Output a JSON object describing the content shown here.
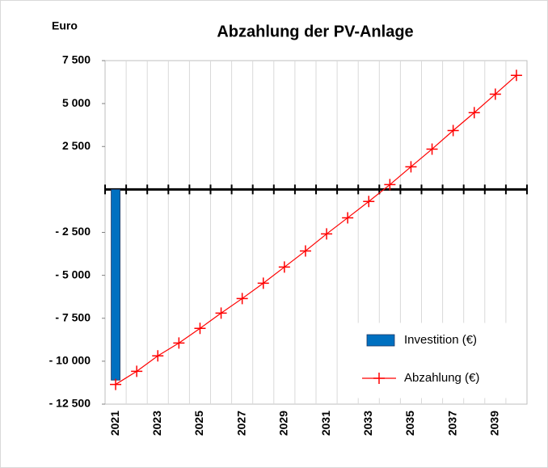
{
  "chart_data": {
    "type": "combo",
    "title": "Abzahlung der PV-Anlage",
    "y_label": "Euro",
    "categories": [
      "2021",
      null,
      "2023",
      null,
      "2025",
      null,
      "2027",
      null,
      "2029",
      null,
      "2031",
      null,
      "2033",
      null,
      "2035",
      null,
      "2037",
      null,
      "2039",
      null
    ],
    "series": [
      {
        "name": "Investition (€)",
        "type": "bar",
        "color": "#0070c0",
        "values": [
          -11100,
          null,
          null,
          null,
          null,
          null,
          null,
          null,
          null,
          null,
          null,
          null,
          null,
          null,
          null,
          null,
          null,
          null,
          null,
          null
        ]
      },
      {
        "name": "Abzahlung (€)",
        "type": "line",
        "color": "#ff0000",
        "values": [
          -11350,
          -10590,
          -9690,
          -8940,
          -8090,
          -7200,
          -6350,
          -5460,
          -4520,
          -3580,
          -2590,
          -1650,
          -700,
          280,
          1320,
          2350,
          3430,
          4470,
          5550,
          6640
        ]
      }
    ],
    "ylim": [
      -12500,
      7500
    ],
    "yticks": [
      {
        "value": 7500,
        "label": "7 500"
      },
      {
        "value": 5000,
        "label": "5 000"
      },
      {
        "value": 2500,
        "label": "2 500"
      },
      {
        "value": -2500,
        "label": "- 2 500"
      },
      {
        "value": -5000,
        "label": "- 5 000"
      },
      {
        "value": -7500,
        "label": "- 7 500"
      },
      {
        "value": -10000,
        "label": "- 10 000"
      },
      {
        "value": -12500,
        "label": "- 12 500"
      }
    ],
    "grid": "x",
    "legend": "lower right"
  }
}
